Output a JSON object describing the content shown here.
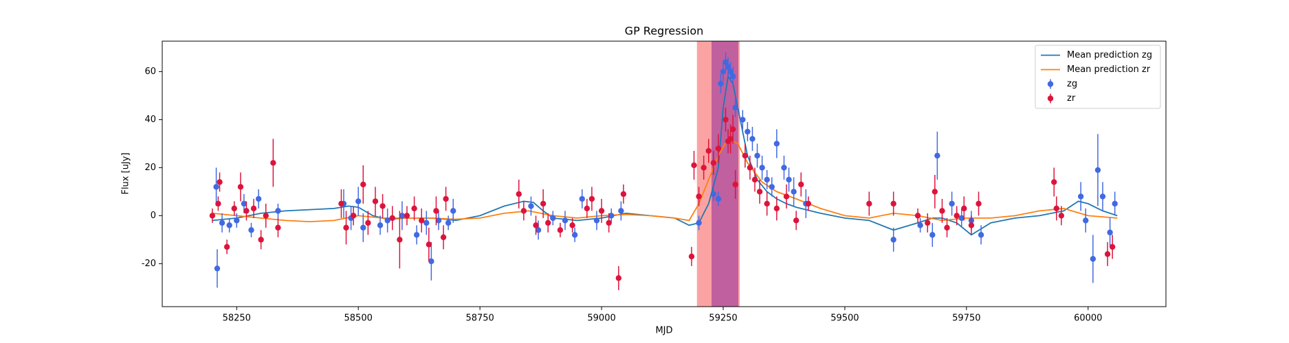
{
  "chart_data": {
    "type": "line",
    "title": "GP Regression",
    "x_label": "MJD",
    "y_label": "Flux [uJy]",
    "xlim": [
      58097,
      60160
    ],
    "ylim": [
      -37.9,
      72.7
    ],
    "xticks": [
      58250,
      58500,
      58750,
      59000,
      59250,
      59500,
      59750,
      60000
    ],
    "yticks": [
      -20,
      0,
      20,
      40,
      60
    ],
    "legend": "upper right",
    "spans": [
      {
        "xlim": [
          59196,
          59284
        ],
        "color": "#fba3a3"
      },
      {
        "xlim": [
          59226,
          59281
        ],
        "color": "#c0609f"
      }
    ],
    "series": [
      {
        "name": "Mean prediction zg",
        "type": "line",
        "color": "#1f77b4",
        "x": [
          58200,
          58250,
          58300,
          58350,
          58400,
          58450,
          58480,
          58500,
          58530,
          58560,
          58600,
          58650,
          58680,
          58700,
          58750,
          58800,
          58840,
          58860,
          58880,
          58900,
          58950,
          59000,
          59050,
          59100,
          59150,
          59180,
          59200,
          59220,
          59240,
          59250,
          59260,
          59270,
          59280,
          59300,
          59320,
          59340,
          59360,
          59380,
          59400,
          59450,
          59500,
          59550,
          59600,
          59650,
          59680,
          59700,
          59730,
          59760,
          59800,
          59850,
          59900,
          59950,
          59980,
          60000,
          60030,
          60060
        ],
        "values": [
          -2,
          -1,
          1,
          2,
          2.5,
          3,
          4,
          3.5,
          0,
          -1.5,
          -1,
          -1,
          -1.5,
          -2,
          0,
          4,
          6,
          5.5,
          2,
          -1,
          -2,
          -1,
          1,
          0,
          -1,
          -4,
          -3,
          5,
          20,
          45,
          58,
          55,
          45,
          25,
          15,
          10,
          7,
          5,
          3.5,
          1,
          -1,
          -2,
          -6,
          -3,
          -1,
          -1,
          -3,
          -8,
          -3,
          -1,
          0,
          2,
          6,
          5,
          2,
          0
        ]
      },
      {
        "name": "Mean prediction zr",
        "type": "line",
        "color": "#ff7f0e",
        "x": [
          58200,
          58250,
          58300,
          58350,
          58400,
          58450,
          58500,
          58550,
          58600,
          58650,
          58700,
          58750,
          58800,
          58850,
          58900,
          58950,
          59000,
          59050,
          59100,
          59150,
          59180,
          59200,
          59220,
          59240,
          59260,
          59280,
          59300,
          59330,
          59360,
          59400,
          59450,
          59500,
          59550,
          59600,
          59650,
          59700,
          59750,
          59800,
          59850,
          59900,
          59950,
          60000,
          60060
        ],
        "values": [
          1,
          0,
          -1,
          -2,
          -2.5,
          -2,
          0,
          -1,
          -1,
          -1,
          -1.5,
          -1,
          1,
          2,
          0,
          -1,
          0,
          0.5,
          0,
          -1,
          -2,
          5,
          15,
          25,
          32,
          30,
          22,
          14,
          10,
          7,
          3,
          0,
          -1,
          1,
          0,
          -2,
          -1,
          -1,
          0,
          2,
          3,
          0,
          -1
        ]
      },
      {
        "name": "zg",
        "type": "errorbar",
        "color": "#4169e1",
        "x": [
          58208,
          58210,
          58220,
          58235,
          58250,
          58265,
          58280,
          58295,
          58335,
          58470,
          58485,
          58500,
          58510,
          58545,
          58560,
          58590,
          58620,
          58640,
          58650,
          58665,
          58685,
          58695,
          58855,
          58870,
          58900,
          58925,
          58945,
          58960,
          58990,
          59020,
          59040,
          59200,
          59230,
          59240,
          59245,
          59250,
          59255,
          59260,
          59265,
          59270,
          59275,
          59290,
          59300,
          59310,
          59320,
          59330,
          59340,
          59350,
          59360,
          59375,
          59385,
          59395,
          59420,
          59600,
          59655,
          59680,
          59690,
          59720,
          59740,
          59760,
          59780,
          59985,
          59995,
          60010,
          60020,
          60030,
          60045,
          60055
        ],
        "values": [
          12,
          -22,
          -3,
          -4,
          -2,
          5,
          -6,
          7,
          2,
          5,
          -1,
          6,
          -5,
          -4,
          -2,
          0,
          -8,
          -3,
          -19,
          -2,
          -3,
          2,
          4,
          -6,
          -1,
          -2,
          -8,
          7,
          -2,
          0,
          2,
          -3,
          9,
          7,
          55,
          60,
          64,
          62,
          60,
          58,
          45,
          40,
          35,
          32,
          25,
          20,
          15,
          12,
          30,
          20,
          15,
          10,
          5,
          -10,
          -4,
          -8,
          25,
          5,
          -1,
          -2,
          -8,
          8,
          -2,
          -18,
          19,
          8,
          -7,
          5
        ],
        "errors": [
          8,
          8,
          4,
          3,
          3,
          4,
          3,
          4,
          3,
          6,
          5,
          6,
          6,
          4,
          5,
          6,
          4,
          5,
          8,
          4,
          3,
          5,
          4,
          4,
          3,
          4,
          3,
          4,
          4,
          3,
          4,
          3,
          3,
          3,
          4,
          4,
          4,
          4,
          4,
          4,
          4,
          4,
          4,
          5,
          5,
          5,
          4,
          4,
          6,
          5,
          5,
          6,
          6,
          5,
          3,
          5,
          10,
          5,
          4,
          4,
          4,
          6,
          5,
          10,
          15,
          6,
          6,
          5
        ]
      },
      {
        "name": "zr",
        "type": "errorbar",
        "color": "#dc143c",
        "x": [
          58200,
          58212,
          58215,
          58230,
          58245,
          58258,
          58270,
          58285,
          58300,
          58310,
          58325,
          58335,
          58465,
          58475,
          58490,
          58510,
          58520,
          58535,
          58550,
          58570,
          58585,
          58600,
          58615,
          58630,
          58645,
          58660,
          58675,
          58680,
          58830,
          58840,
          58865,
          58880,
          58890,
          58915,
          58940,
          58970,
          58980,
          59000,
          59015,
          59035,
          59045,
          59185,
          59190,
          59200,
          59210,
          59220,
          59230,
          59240,
          59255,
          59260,
          59265,
          59270,
          59275,
          59295,
          59305,
          59315,
          59325,
          59340,
          59360,
          59380,
          59400,
          59410,
          59425,
          59550,
          59600,
          59650,
          59670,
          59685,
          59700,
          59710,
          59730,
          59745,
          59760,
          59775,
          59930,
          59935,
          59945,
          60040,
          60050
        ],
        "values": [
          0,
          5,
          14,
          -13,
          3,
          12,
          2,
          3,
          -10,
          0,
          22,
          -5,
          5,
          -5,
          0,
          13,
          -3,
          6,
          4,
          -1,
          -10,
          0,
          3,
          -2,
          -12,
          2,
          -9,
          7,
          9,
          2,
          -4,
          5,
          -3,
          -6,
          -4,
          3,
          7,
          2,
          -3,
          -26,
          9,
          -17,
          21,
          8,
          20,
          27,
          22,
          28,
          40,
          31,
          32,
          36,
          13,
          25,
          20,
          15,
          10,
          5,
          3,
          8,
          -2,
          13,
          5,
          5,
          5,
          0,
          -3,
          10,
          2,
          -5,
          0,
          3,
          -4,
          5,
          14,
          3,
          0,
          -16,
          -13
        ],
        "errors": [
          3,
          3,
          4,
          3,
          3,
          6,
          4,
          4,
          4,
          5,
          10,
          4,
          6,
          7,
          4,
          8,
          5,
          6,
          5,
          5,
          12,
          4,
          5,
          5,
          7,
          6,
          5,
          5,
          6,
          4,
          4,
          6,
          4,
          3,
          3,
          4,
          5,
          5,
          4,
          5,
          4,
          4,
          6,
          4,
          5,
          5,
          5,
          6,
          5,
          5,
          6,
          6,
          6,
          5,
          5,
          5,
          5,
          5,
          5,
          5,
          4,
          5,
          3,
          5,
          5,
          3,
          4,
          7,
          5,
          4,
          4,
          5,
          4,
          5,
          6,
          5,
          4,
          5,
          5
        ]
      }
    ]
  }
}
